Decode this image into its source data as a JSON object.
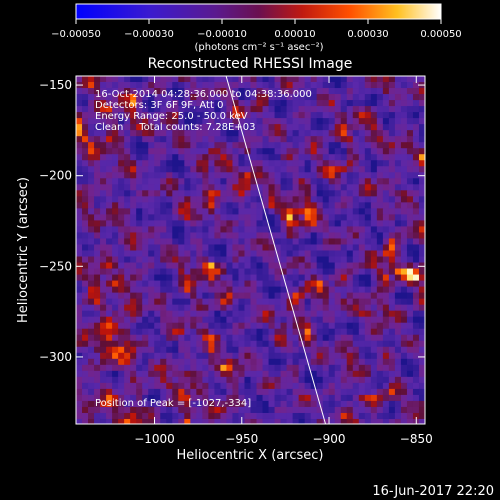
{
  "chart_data": {
    "type": "heatmap",
    "title": "Reconstructed RHESSI Image",
    "xlabel": "Heliocentric X (arcsec)",
    "ylabel": "Heliocentric Y (arcsec)",
    "xlim": [
      -1045,
      -845
    ],
    "ylim": [
      -337,
      -145
    ],
    "x_ticks": [
      -1000,
      -950,
      -900,
      -850
    ],
    "y_ticks": [
      -150,
      -200,
      -250,
      -300
    ],
    "x_tick_labels": [
      "−1000",
      "−950",
      "−900",
      "−850"
    ],
    "y_tick_labels": [
      "−150",
      "−200",
      "−250",
      "−300"
    ],
    "colorbar": {
      "range": [
        -0.0005,
        0.0005
      ],
      "ticks": [
        -0.0005,
        -0.0003,
        -0.0001,
        0.0001,
        0.0003,
        0.0005
      ],
      "tick_labels": [
        "−0.00050",
        "−0.00030",
        "−0.00010",
        "0.00010",
        "0.00030",
        "0.00050"
      ],
      "unit_label": "(photons cm⁻² s⁻¹ asec⁻²)",
      "colormap": "blue-purple-red-orange-yellow-white"
    },
    "annotations": [
      "16-Oct-2014 04:28:36.000 to 04:38:36.000",
      "Detectors: 3F 6F 9F, Att 0",
      "Energy Range: 25.0 - 50.0 keV",
      "Clean     Total counts: 7.28E+03"
    ],
    "peak_label": "Position of Peak = [-1027,-334]",
    "peak_position": [
      -1027,
      -334
    ],
    "limb_line": [
      [
        -959,
        -145
      ],
      [
        -902,
        -337
      ]
    ],
    "timestamp": "16-Jun-2017 22:20"
  }
}
